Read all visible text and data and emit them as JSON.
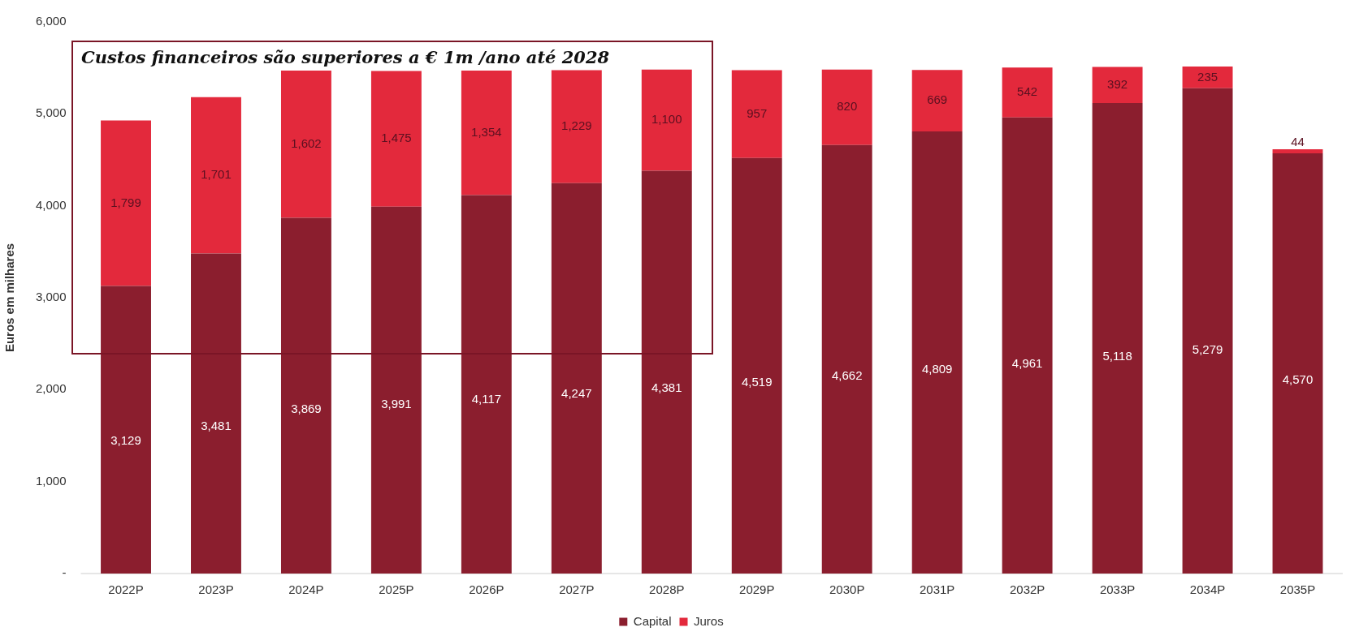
{
  "chart_data": {
    "type": "bar",
    "stacked": true,
    "ylabel": "Euros em milhares",
    "categories": [
      "2022P",
      "2023P",
      "2024P",
      "2025P",
      "2026P",
      "2027P",
      "2028P",
      "2029P",
      "2030P",
      "2031P",
      "2032P",
      "2033P",
      "2034P",
      "2035P"
    ],
    "series": [
      {
        "name": "Capital",
        "color": "#8b1e2e",
        "values": [
          3129,
          3481,
          3869,
          3991,
          4117,
          4247,
          4381,
          4519,
          4662,
          4809,
          4961,
          5118,
          5279,
          4570
        ],
        "value_labels": [
          "3,129",
          "3,481",
          "3,869",
          "3,991",
          "4,117",
          "4,247",
          "4,381",
          "4,519",
          "4,662",
          "4,809",
          "4,961",
          "5,118",
          "5,279",
          "4,570"
        ]
      },
      {
        "name": "Juros",
        "color": "#e3293c",
        "values": [
          1799,
          1701,
          1602,
          1475,
          1354,
          1229,
          1100,
          957,
          820,
          669,
          542,
          392,
          235,
          44
        ],
        "value_labels": [
          "1,799",
          "1,701",
          "1,602",
          "1,475",
          "1,354",
          "1,229",
          "1,100",
          "957",
          "820",
          "669",
          "542",
          "392",
          "235",
          "44"
        ]
      }
    ],
    "ylim": [
      0,
      6000
    ],
    "yticks": [
      {
        "value": 0,
        "label": "-"
      },
      {
        "value": 1000,
        "label": "1,000"
      },
      {
        "value": 2000,
        "label": "2,000"
      },
      {
        "value": 3000,
        "label": "3,000"
      },
      {
        "value": 4000,
        "label": "4,000"
      },
      {
        "value": 5000,
        "label": "5,000"
      },
      {
        "value": 6000,
        "label": "6,000"
      }
    ],
    "grid": false,
    "legend": "bottom",
    "annotations": [
      "Custos financeiros são superiores a € 1m /ano até 2028"
    ]
  }
}
